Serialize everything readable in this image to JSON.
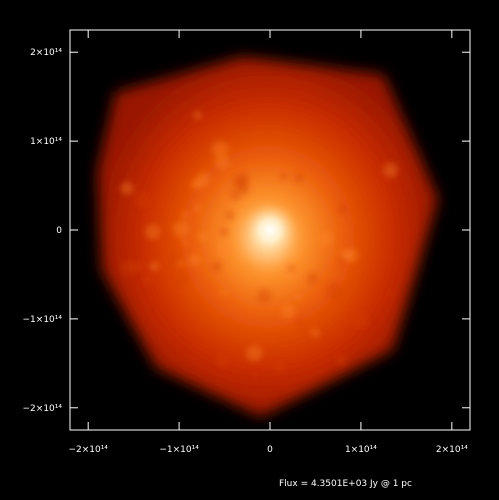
{
  "footer": {
    "flux_text": "Flux = 4.3501E+03 Jy @ 1 pc"
  },
  "chart_data": {
    "type": "heatmap",
    "title": "",
    "xlabel": "",
    "ylabel": "",
    "xlim": [
      -220000000000000.0,
      220000000000000.0
    ],
    "ylim": [
      -225000000000000.0,
      225000000000000.0
    ],
    "x_ticks": [
      {
        "value": -200000000000000.0,
        "label": "−2×10¹⁴"
      },
      {
        "value": -100000000000000.0,
        "label": "−1×10¹⁴"
      },
      {
        "value": 0,
        "label": "0"
      },
      {
        "value": 100000000000000.0,
        "label": "1×10¹⁴"
      },
      {
        "value": 200000000000000.0,
        "label": "2×10¹⁴"
      }
    ],
    "y_ticks": [
      {
        "value": 200000000000000.0,
        "label": "2×10¹⁴"
      },
      {
        "value": 100000000000000.0,
        "label": "1×10¹⁴"
      },
      {
        "value": 0,
        "label": "0"
      },
      {
        "value": -100000000000000.0,
        "label": "−1×10¹⁴"
      },
      {
        "value": -200000000000000.0,
        "label": "−2×10¹⁴"
      }
    ],
    "colormap": [
      "#000000",
      "#6e0c00",
      "#c62a00",
      "#ea5a08",
      "#ff9a30",
      "#ffe8b8",
      "#ffffff"
    ],
    "brightness_peak": [
      0,
      0
    ],
    "emission_boundary": [
      [
        -170000000000000.0,
        155000000000000.0
      ],
      [
        -30000000000000.0,
        195000000000000.0
      ],
      [
        125000000000000.0,
        175000000000000.0
      ],
      [
        185000000000000.0,
        35000000000000.0
      ],
      [
        135000000000000.0,
        -135000000000000.0
      ],
      [
        -10000000000000.0,
        -210000000000000.0
      ],
      [
        -125000000000000.0,
        -155000000000000.0
      ],
      [
        -185000000000000.0,
        -45000000000000.0
      ],
      [
        -190000000000000.0,
        65000000000000.0
      ]
    ],
    "grid": false,
    "legend": "none"
  }
}
